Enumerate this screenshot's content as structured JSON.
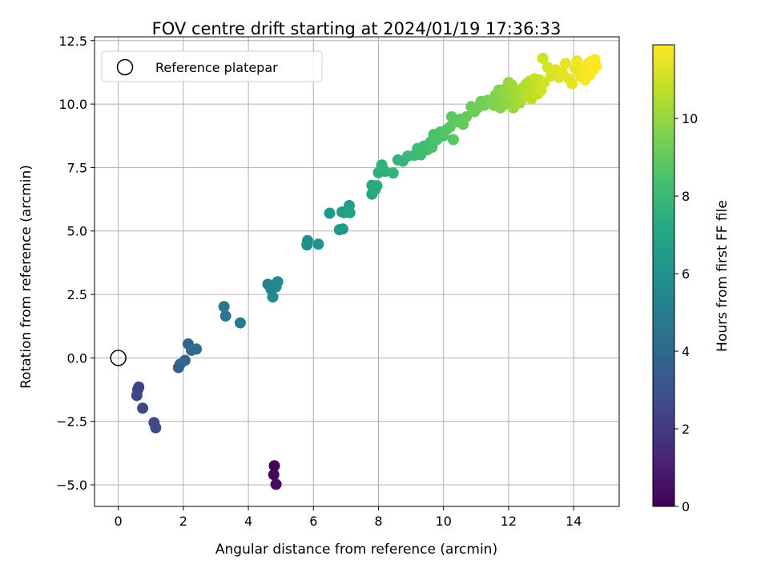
{
  "chart_data": {
    "type": "scatter",
    "title": "FOV centre drift starting at 2024/01/19 17:36:33",
    "xlabel": "Angular distance from reference (arcmin)",
    "ylabel": "Rotation from reference (arcmin)",
    "xlim": [
      -0.73,
      15.4
    ],
    "ylim": [
      -5.85,
      12.65
    ],
    "xticks": [
      0,
      2,
      4,
      6,
      8,
      10,
      12,
      14
    ],
    "yticks": [
      -5.0,
      -2.5,
      0.0,
      2.5,
      5.0,
      7.5,
      10.0,
      12.5
    ],
    "ytick_labels": [
      "−5.0",
      "−2.5",
      "0.0",
      "2.5",
      "5.0",
      "7.5",
      "10.0",
      "12.5"
    ],
    "grid": true,
    "colormap": "viridis",
    "colorbar": {
      "label": "Hours from first FF file",
      "range": [
        0,
        11.9
      ],
      "ticks": [
        0,
        2,
        4,
        6,
        8,
        10
      ]
    },
    "legend": {
      "entries": [
        "Reference platepar"
      ],
      "placement": "upper-left"
    },
    "reference_point": {
      "x": 0,
      "y": 0,
      "label": "Reference platepar"
    },
    "series": [
      {
        "points": [
          [
            4.8,
            -4.25,
            0.1
          ],
          [
            4.78,
            -4.6,
            0.2
          ],
          [
            4.85,
            -4.98,
            0.3
          ],
          [
            0.63,
            -1.15,
            2.2
          ],
          [
            0.6,
            -1.25,
            2.3
          ],
          [
            0.57,
            -1.48,
            2.4
          ],
          [
            0.75,
            -1.98,
            2.5
          ],
          [
            1.1,
            -2.55,
            2.6
          ],
          [
            1.15,
            -2.75,
            2.7
          ],
          [
            1.85,
            -0.38,
            3.6
          ],
          [
            1.9,
            -0.25,
            3.7
          ],
          [
            2.05,
            -0.1,
            3.8
          ],
          [
            2.15,
            0.55,
            3.9
          ],
          [
            2.25,
            0.3,
            4.0
          ],
          [
            2.4,
            0.35,
            4.1
          ],
          [
            3.25,
            2.02,
            4.6
          ],
          [
            3.3,
            1.65,
            4.7
          ],
          [
            3.75,
            1.38,
            4.9
          ],
          [
            4.6,
            2.9,
            5.3
          ],
          [
            4.7,
            2.7,
            5.4
          ],
          [
            4.75,
            2.4,
            5.5
          ],
          [
            4.85,
            2.8,
            5.5
          ],
          [
            4.9,
            3.0,
            5.6
          ],
          [
            5.8,
            4.45,
            5.8
          ],
          [
            5.82,
            4.62,
            5.9
          ],
          [
            6.15,
            4.48,
            6.0
          ],
          [
            6.5,
            5.7,
            6.3
          ],
          [
            6.8,
            5.05,
            6.3
          ],
          [
            6.9,
            5.08,
            6.4
          ],
          [
            6.88,
            5.75,
            6.5
          ],
          [
            6.95,
            5.72,
            6.6
          ],
          [
            7.1,
            6.0,
            6.7
          ],
          [
            7.12,
            5.72,
            6.8
          ],
          [
            7.8,
            6.45,
            7.1
          ],
          [
            7.8,
            6.8,
            7.2
          ],
          [
            7.9,
            6.65,
            7.3
          ],
          [
            7.95,
            6.78,
            7.3
          ],
          [
            8.0,
            7.3,
            7.5
          ],
          [
            8.1,
            7.6,
            7.6
          ],
          [
            8.2,
            7.35,
            7.6
          ],
          [
            8.45,
            7.28,
            7.7
          ],
          [
            8.6,
            7.8,
            7.7
          ],
          [
            8.75,
            7.75,
            7.8
          ],
          [
            8.9,
            7.95,
            7.9
          ],
          [
            9.1,
            7.98,
            8.0
          ],
          [
            9.2,
            8.25,
            8.1
          ],
          [
            9.3,
            8.0,
            8.1
          ],
          [
            9.4,
            8.35,
            8.2
          ],
          [
            9.5,
            8.2,
            8.3
          ],
          [
            9.6,
            8.5,
            8.3
          ],
          [
            9.65,
            8.3,
            8.4
          ],
          [
            9.7,
            8.8,
            8.4
          ],
          [
            9.8,
            8.6,
            8.5
          ],
          [
            9.9,
            8.9,
            8.5
          ],
          [
            10.0,
            8.75,
            8.6
          ],
          [
            10.1,
            9.0,
            8.7
          ],
          [
            10.2,
            9.1,
            8.7
          ],
          [
            10.25,
            9.5,
            8.8
          ],
          [
            10.3,
            8.6,
            8.8
          ],
          [
            10.4,
            9.3,
            8.9
          ],
          [
            10.5,
            9.4,
            8.9
          ],
          [
            10.6,
            9.2,
            9.0
          ],
          [
            10.7,
            9.5,
            9.1
          ],
          [
            10.85,
            9.9,
            9.2
          ],
          [
            10.95,
            9.7,
            9.2
          ],
          [
            11.05,
            9.85,
            9.3
          ],
          [
            11.15,
            10.1,
            9.3
          ],
          [
            11.25,
            9.95,
            9.4
          ],
          [
            11.35,
            10.15,
            9.4
          ],
          [
            11.45,
            10.05,
            9.5
          ],
          [
            11.55,
            9.95,
            9.6
          ],
          [
            11.6,
            10.35,
            9.6
          ],
          [
            11.7,
            10.55,
            9.7
          ],
          [
            11.75,
            9.85,
            9.7
          ],
          [
            11.8,
            10.25,
            9.8
          ],
          [
            11.85,
            10.1,
            9.8
          ],
          [
            11.9,
            10.6,
            9.9
          ],
          [
            11.95,
            10.0,
            9.9
          ],
          [
            12.0,
            10.35,
            10.0
          ],
          [
            12.0,
            10.85,
            10.0
          ],
          [
            12.1,
            10.75,
            10.1
          ],
          [
            12.15,
            9.85,
            10.1
          ],
          [
            12.2,
            10.45,
            10.2
          ],
          [
            12.25,
            10.15,
            10.2
          ],
          [
            12.3,
            10.55,
            10.3
          ],
          [
            12.35,
            10.05,
            10.3
          ],
          [
            12.45,
            10.65,
            10.4
          ],
          [
            12.5,
            10.3,
            10.5
          ],
          [
            12.55,
            10.8,
            10.5
          ],
          [
            12.6,
            10.45,
            10.6
          ],
          [
            12.65,
            10.9,
            10.6
          ],
          [
            12.7,
            10.2,
            10.7
          ],
          [
            12.75,
            10.6,
            10.7
          ],
          [
            12.8,
            11.0,
            10.8
          ],
          [
            12.85,
            10.75,
            10.8
          ],
          [
            12.9,
            10.4,
            10.9
          ],
          [
            12.95,
            10.95,
            10.9
          ],
          [
            13.0,
            10.55,
            11.0
          ],
          [
            13.05,
            11.8,
            11.0
          ],
          [
            13.1,
            10.85,
            11.1
          ],
          [
            13.2,
            11.45,
            11.1
          ],
          [
            13.3,
            11.1,
            11.2
          ],
          [
            13.45,
            11.35,
            11.3
          ],
          [
            13.55,
            11.05,
            11.3
          ],
          [
            13.65,
            11.25,
            11.4
          ],
          [
            13.75,
            11.6,
            11.4
          ],
          [
            13.85,
            11.0,
            11.5
          ],
          [
            13.95,
            10.8,
            11.5
          ],
          [
            14.05,
            11.4,
            11.5
          ],
          [
            14.1,
            11.7,
            11.6
          ],
          [
            14.2,
            11.1,
            11.6
          ],
          [
            14.3,
            11.45,
            11.7
          ],
          [
            14.35,
            10.95,
            11.7
          ],
          [
            14.45,
            11.6,
            11.8
          ],
          [
            14.5,
            11.15,
            11.8
          ],
          [
            14.55,
            11.7,
            11.8
          ],
          [
            14.6,
            11.35,
            11.9
          ],
          [
            14.65,
            11.75,
            11.9
          ],
          [
            14.7,
            11.5,
            11.9
          ]
        ]
      }
    ]
  }
}
